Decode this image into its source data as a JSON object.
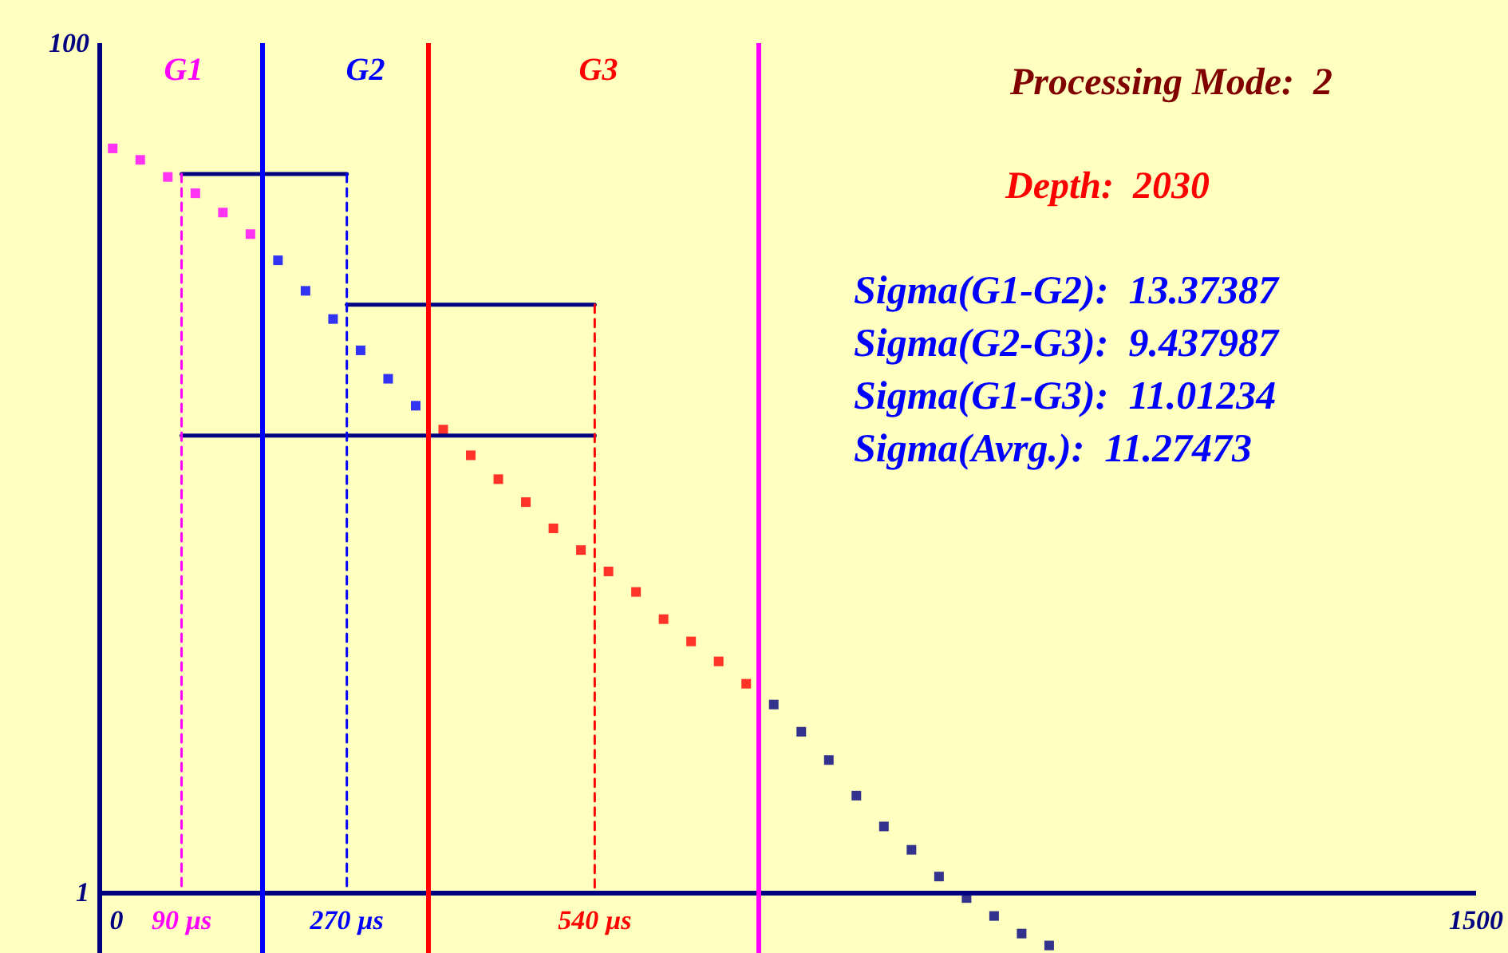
{
  "chart_data": {
    "type": "scatter",
    "title": "Processing Mode:  2",
    "subtitle": "Depth:  2030",
    "annotations": [
      "G1",
      "G2",
      "G3",
      "Sigma(G1-G2):  13.37387",
      "Sigma(G2-G3):  9.437987",
      "Sigma(G1-G3):  11.01234",
      "Sigma(Avrg.):  11.27473"
    ],
    "log": "y",
    "marker": "square",
    "xlim": [
      0,
      1500
    ],
    "xticks": [
      0,
      {
        "value": 90,
        "label": "90 µs"
      },
      {
        "value": 270,
        "label": "270 µs"
      },
      {
        "value": 540,
        "label": "540 µs"
      },
      1500
    ],
    "ylim": [
      0.72,
      100
    ],
    "yticks": [
      1,
      100
    ],
    "series": [
      {
        "color": "#ff00ff",
        "x": [
          15,
          45,
          75,
          105,
          135,
          165
        ],
        "values": [
          56.5,
          53.1,
          48.4,
          44.3,
          39.9,
          35.5
        ]
      },
      {
        "color": "#0000ff",
        "x": [
          195,
          225,
          255,
          285,
          315,
          345
        ],
        "values": [
          30.8,
          26.1,
          22.4,
          18.9,
          16.2,
          14.0
        ]
      },
      {
        "color": "#ff0000",
        "x": [
          375,
          405,
          435,
          465,
          495,
          525,
          555,
          585,
          615,
          645,
          675,
          705
        ],
        "values": [
          12.3,
          10.7,
          9.4,
          8.3,
          7.2,
          6.4,
          5.7,
          5.1,
          4.4,
          3.9,
          3.5,
          3.1
        ]
      },
      {
        "color": "#000080",
        "x": [
          735,
          765,
          795,
          825,
          855,
          885,
          915,
          945,
          975,
          1005,
          1035
        ],
        "values": [
          2.77,
          2.39,
          2.05,
          1.69,
          1.43,
          1.26,
          1.09,
          0.97,
          0.88,
          0.8,
          0.75
        ]
      },
      {
        "type": "line",
        "marker": "none",
        "line_style": "solid",
        "color": "#000080",
        "x": [
          90,
          270
        ],
        "values": [
          49.2,
          49.2
        ]
      },
      {
        "type": "line",
        "marker": "none",
        "line_style": "solid",
        "color": "#000080",
        "x": [
          270,
          540
        ],
        "values": [
          24.2,
          24.2
        ]
      },
      {
        "type": "line",
        "marker": "none",
        "line_style": "solid",
        "color": "#000080",
        "x": [
          90,
          540
        ],
        "values": [
          11.9,
          11.9
        ]
      },
      {
        "type": "line",
        "marker": "none",
        "line_style": "dashed",
        "color": "#ff00ff",
        "x": [
          90,
          90
        ],
        "values": [
          49.2,
          1
        ]
      },
      {
        "type": "line",
        "marker": "none",
        "line_style": "dashed",
        "color": "#0000ff",
        "x": [
          270,
          270
        ],
        "values": [
          49.2,
          1
        ]
      },
      {
        "type": "line",
        "marker": "none",
        "line_style": "dashed",
        "color": "#ff0000",
        "x": [
          540,
          540
        ],
        "values": [
          24.2,
          1
        ]
      }
    ],
    "ref_lines": [
      {
        "axis": "x",
        "value": 0,
        "color": "#000080",
        "line_style": "solid"
      },
      {
        "axis": "y",
        "value": 1,
        "color": "#000080",
        "line_style": "solid"
      },
      {
        "axis": "x",
        "value": 178,
        "color": "#0000ff",
        "line_style": "solid"
      },
      {
        "axis": "x",
        "value": 359,
        "color": "#ff0000",
        "line_style": "solid"
      },
      {
        "axis": "x",
        "value": 719,
        "color": "#ff00ff",
        "line_style": "solid"
      }
    ]
  }
}
